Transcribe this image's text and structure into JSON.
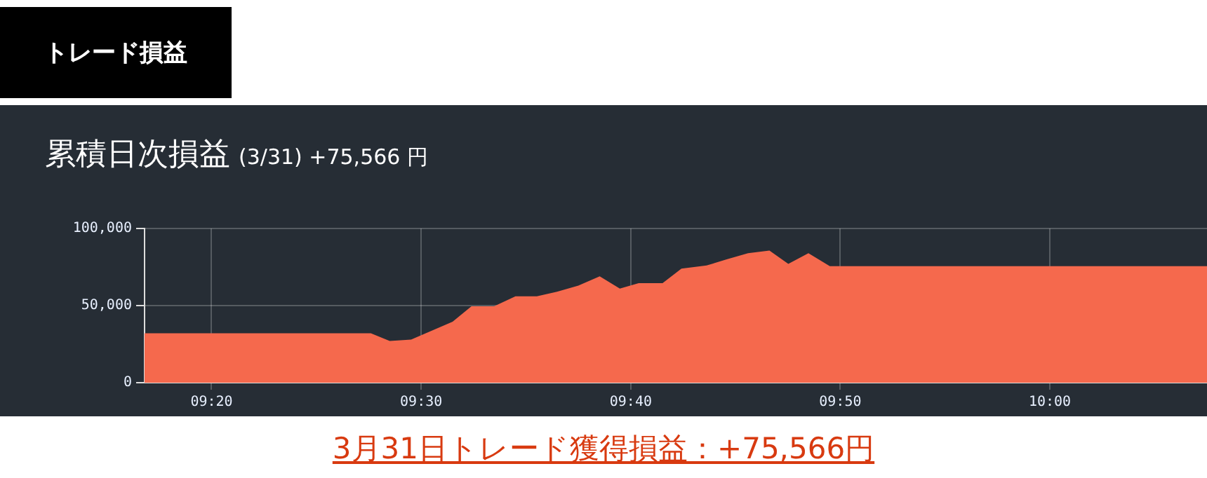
{
  "chart_data": {
    "type": "area",
    "title": "累積日次損益",
    "subtitle": "(3/31) +75,566 円",
    "annotations": [
      "トレード損益",
      "3月31日トレード獲得損益：+75,566円"
    ],
    "x": [
      9.28,
      9.46,
      9.475,
      9.492,
      9.525,
      9.54,
      9.558,
      9.575,
      9.592,
      9.608,
      9.625,
      9.642,
      9.658,
      9.673,
      9.692,
      9.707,
      9.727,
      9.743,
      9.76,
      9.777,
      9.792,
      9.808,
      9.825,
      10.125
    ],
    "series": [
      {
        "color": "#f5694d",
        "values": [
          32000,
          32000,
          27000,
          28000,
          39600,
          49500,
          49500,
          56000,
          56000,
          59000,
          63000,
          69000,
          61000,
          64500,
          64500,
          74000,
          76000,
          80000,
          84000,
          85700,
          77000,
          84000,
          75566,
          75566
        ]
      }
    ],
    "xlim": [
      9.28,
      10.125
    ],
    "xticks": [
      {
        "value": 9.3333,
        "label": "09:20"
      },
      {
        "value": 9.5,
        "label": "09:30"
      },
      {
        "value": 9.6667,
        "label": "09:40"
      },
      {
        "value": 9.8333,
        "label": "09:50"
      },
      {
        "value": 10,
        "label": "10:00"
      }
    ],
    "ylim": [
      0,
      100000
    ],
    "yticks": [
      {
        "value": 0,
        "label": "0"
      },
      {
        "value": 50000,
        "label": "50,000"
      },
      {
        "value": 100000,
        "label": "100,000"
      }
    ],
    "grid": true,
    "legend": false
  }
}
